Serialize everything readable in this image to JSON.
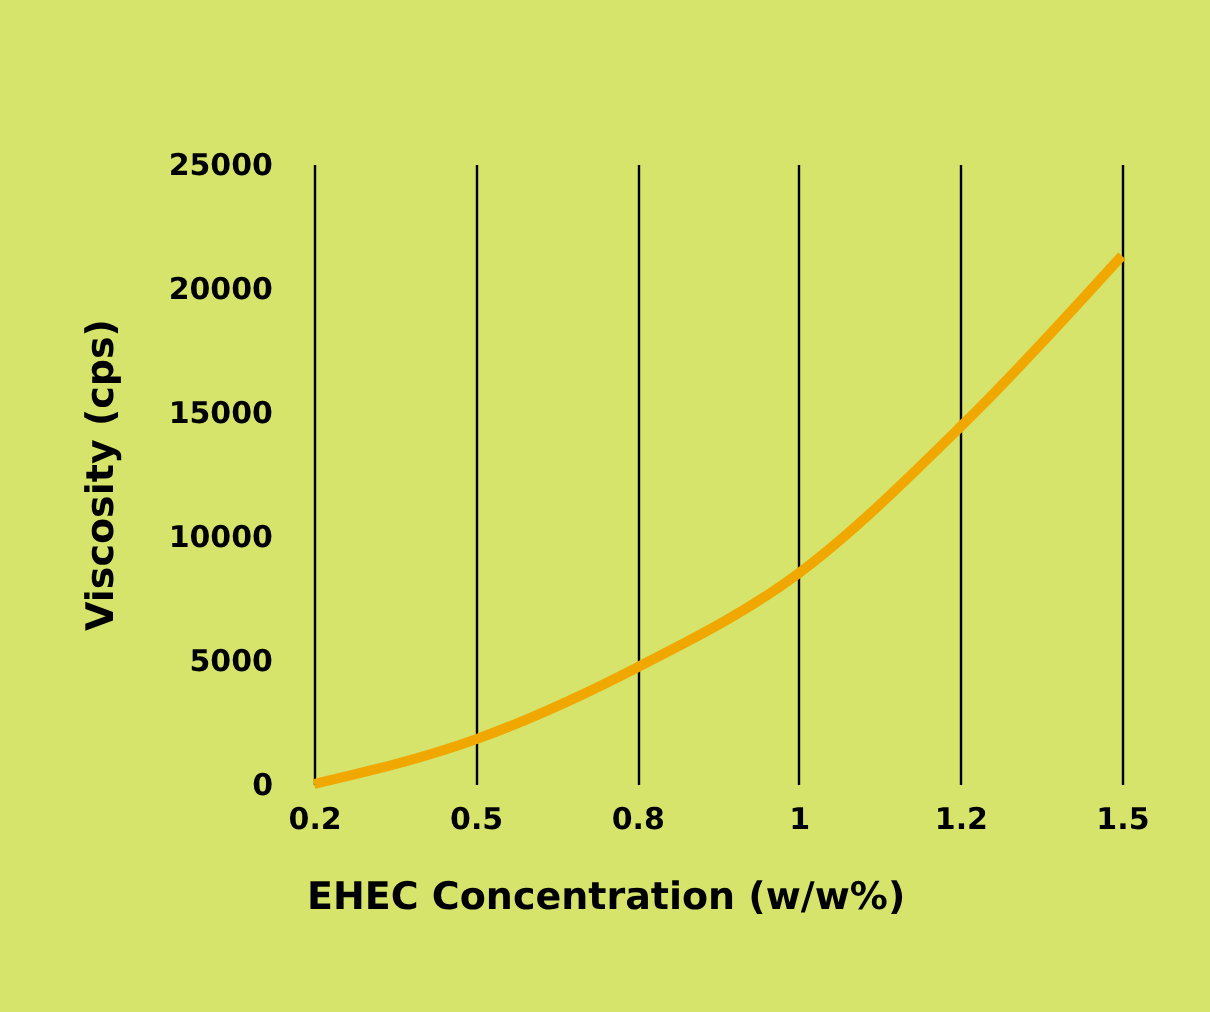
{
  "chart_data": {
    "type": "line",
    "xlabel": "EHEC Concentration (w/w%)",
    "ylabel": "Viscosity (cps)",
    "categories": [
      "0.2",
      "0.5",
      "0.8",
      "1",
      "1.2",
      "1.5"
    ],
    "series": [
      {
        "color": "#f0a800",
        "values": [
          0,
          1800,
          4700,
          8500,
          14400,
          21300
        ]
      }
    ],
    "ylim": [
      0,
      25000
    ],
    "yticks": [
      0,
      5000,
      10000,
      15000,
      20000,
      25000
    ],
    "grid": "x",
    "line_style": "solid"
  }
}
